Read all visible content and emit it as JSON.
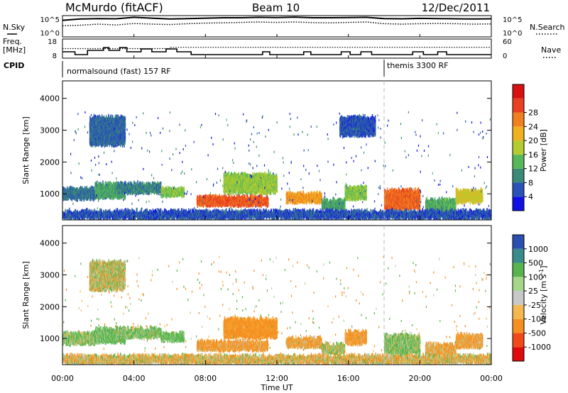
{
  "header": {
    "station": "McMurdo (fitACF)",
    "beam": "Beam 10",
    "date": "12/Dec/2011"
  },
  "top_panels": {
    "nsky_label": "N.Sky",
    "nsearch_label": "N.Search",
    "nsky_ticks": [
      "10^5",
      "10^0"
    ],
    "nsearch_ticks": [
      "10^5",
      "10^0"
    ],
    "freq_label_1": "Freq.",
    "freq_label_2": "[MHz]",
    "freq_ticks": [
      "18",
      "8"
    ],
    "nave_label": "Nave",
    "nave_ticks": [
      "60",
      "0"
    ],
    "cpid_label": "CPID",
    "cpid_segments": [
      "normalsound (fast) 157 RF",
      "themis 3300 RF"
    ]
  },
  "chart_data": [
    {
      "type": "line",
      "title": "",
      "series": [
        {
          "name": "N.Sky",
          "style": "solid",
          "x": [
            0,
            1,
            2,
            3,
            4,
            5,
            6,
            7,
            8,
            9,
            10,
            11,
            12,
            13,
            14,
            15,
            16,
            17,
            18,
            19,
            20,
            21,
            22,
            23,
            24
          ],
          "y": [
            0.78,
            0.84,
            0.86,
            0.85,
            0.92,
            0.88,
            0.84,
            0.86,
            0.88,
            0.9,
            0.9,
            0.92,
            0.91,
            0.93,
            0.9,
            0.9,
            0.91,
            0.92,
            0.86,
            0.85,
            0.87,
            0.86,
            0.85,
            0.84,
            0.85
          ]
        },
        {
          "name": "N.Search",
          "style": "dotted",
          "x": [
            0,
            1,
            2,
            3,
            4,
            5,
            6,
            7,
            8,
            9,
            10,
            11,
            12,
            13,
            14,
            15,
            16,
            17,
            18,
            19,
            20,
            21,
            22,
            23,
            24
          ],
          "y": [
            0.52,
            0.55,
            0.6,
            0.56,
            0.63,
            0.6,
            0.58,
            0.62,
            0.65,
            0.66,
            0.68,
            0.7,
            0.68,
            0.7,
            0.67,
            0.66,
            0.68,
            0.7,
            0.62,
            0.6,
            0.62,
            0.63,
            0.62,
            0.6,
            0.61
          ]
        }
      ]
    },
    {
      "type": "line",
      "series": [
        {
          "name": "Freq.",
          "style": "solid",
          "x": [
            0,
            0.7,
            0.7,
            1.4,
            1.4,
            2.3,
            2.3,
            2.6,
            2.6,
            3.2,
            3.2,
            3.6,
            3.6,
            4.4,
            4.4,
            5.0,
            5.0,
            5.8,
            5.8,
            6.4,
            6.4,
            7.2,
            7.2,
            11.2,
            11.2,
            11.6,
            11.6,
            13.5,
            13.5,
            13.9,
            13.9,
            15.6,
            15.6,
            16.1,
            16.1,
            16.7,
            16.7,
            17.3,
            17.3,
            18.0,
            18.0,
            19.6,
            19.6,
            20.2,
            20.2,
            21.0,
            21.0,
            21.5,
            21.5,
            24
          ],
          "y": [
            11,
            11,
            9,
            9,
            12,
            12,
            14,
            14,
            12,
            12,
            14,
            14,
            11,
            11,
            13,
            13,
            11,
            11,
            13,
            13,
            11,
            11,
            9,
            9,
            11,
            11,
            9,
            9,
            11,
            11,
            9,
            9,
            11,
            11,
            9,
            9,
            11,
            11,
            9,
            9,
            9,
            9,
            11,
            11,
            9,
            9,
            11,
            11,
            9,
            9
          ]
        },
        {
          "name": "Nave",
          "style": "dotted",
          "x": [
            0,
            6,
            6,
            24
          ],
          "y": [
            30,
            30,
            34,
            34
          ]
        }
      ]
    },
    {
      "type": "heatmap",
      "title": "",
      "xlabel": "",
      "ylabel": "Slant Range [km]",
      "x_ticks": [
        "00:00",
        "04:00",
        "08:00",
        "12:00",
        "16:00",
        "20:00",
        "00:00"
      ],
      "y_ticks": [
        "1000",
        "2000",
        "3000",
        "4000"
      ],
      "xlim": [
        0,
        24
      ],
      "ylim": [
        180,
        4550
      ],
      "colorbar": {
        "label": "Power [dB]",
        "ticks": [
          "4",
          "8",
          "12",
          "16",
          "20",
          "24",
          "28"
        ],
        "range": [
          0,
          30
        ]
      },
      "regions": [
        {
          "x": [
            0.0,
            1.8
          ],
          "y": [
            800,
            1250
          ],
          "value": 7
        },
        {
          "x": [
            1.8,
            3.5
          ],
          "y": [
            850,
            1400
          ],
          "value": 10
        },
        {
          "x": [
            3.0,
            5.5
          ],
          "y": [
            1000,
            1400
          ],
          "value": 8
        },
        {
          "x": [
            5.5,
            6.8
          ],
          "y": [
            900,
            1250
          ],
          "value": 13
        },
        {
          "x": [
            7.5,
            11.5
          ],
          "y": [
            600,
            1000
          ],
          "value": 24
        },
        {
          "x": [
            9.0,
            12.0
          ],
          "y": [
            1000,
            1700
          ],
          "value": 14
        },
        {
          "x": [
            12.5,
            14.5
          ],
          "y": [
            700,
            1100
          ],
          "value": 20
        },
        {
          "x": [
            14.5,
            15.8
          ],
          "y": [
            500,
            900
          ],
          "value": 10
        },
        {
          "x": [
            15.8,
            17.0
          ],
          "y": [
            800,
            1300
          ],
          "value": 13
        },
        {
          "x": [
            18.0,
            20.0
          ],
          "y": [
            500,
            1200
          ],
          "value": 23
        },
        {
          "x": [
            19.5,
            20.3
          ],
          "y": [
            250,
            450
          ],
          "value": 27
        },
        {
          "x": [
            20.3,
            22.0
          ],
          "y": [
            400,
            900
          ],
          "value": 11
        },
        {
          "x": [
            22.0,
            23.5
          ],
          "y": [
            700,
            1200
          ],
          "value": 16
        },
        {
          "x": [
            0.0,
            24.0
          ],
          "y": [
            200,
            550
          ],
          "value": 5
        },
        {
          "x": [
            1.5,
            3.5
          ],
          "y": [
            2500,
            3500
          ],
          "value": 6
        },
        {
          "x": [
            15.5,
            17.5
          ],
          "y": [
            2800,
            3500
          ],
          "value": 5
        }
      ]
    },
    {
      "type": "heatmap",
      "title": "",
      "xlabel": "Time UT",
      "ylabel": "Slant Range [km]",
      "x_ticks": [
        "00:00",
        "04:00",
        "08:00",
        "12:00",
        "16:00",
        "20:00",
        "00:00"
      ],
      "y_ticks": [
        "1000",
        "2000",
        "3000",
        "4000"
      ],
      "xlim": [
        0,
        24
      ],
      "ylim": [
        180,
        4550
      ],
      "colorbar": {
        "label": "Velocity [m s^-1]",
        "label_main": "Velocity",
        "label_unit": "[m s",
        "label_sup": "-1",
        "label_close": "]",
        "ticks": [
          "1000",
          "500",
          "100",
          "25",
          "-25",
          "-100",
          "-500",
          "-1000"
        ],
        "range": [
          -1200,
          1200
        ]
      },
      "regions": [
        {
          "x": [
            0.0,
            1.8
          ],
          "y": [
            800,
            1250
          ],
          "value": 120
        },
        {
          "x": [
            1.8,
            3.5
          ],
          "y": [
            850,
            1400
          ],
          "value": 200
        },
        {
          "x": [
            3.0,
            5.5
          ],
          "y": [
            1000,
            1400
          ],
          "value": 150
        },
        {
          "x": [
            5.5,
            6.8
          ],
          "y": [
            900,
            1250
          ],
          "value": 220
        },
        {
          "x": [
            7.5,
            11.5
          ],
          "y": [
            600,
            1000
          ],
          "value": -180
        },
        {
          "x": [
            9.0,
            12.0
          ],
          "y": [
            1000,
            1700
          ],
          "value": -250
        },
        {
          "x": [
            12.5,
            14.5
          ],
          "y": [
            700,
            1100
          ],
          "value": -150
        },
        {
          "x": [
            14.5,
            15.8
          ],
          "y": [
            500,
            900
          ],
          "value": 40
        },
        {
          "x": [
            15.8,
            17.0
          ],
          "y": [
            800,
            1300
          ],
          "value": -200
        },
        {
          "x": [
            18.0,
            20.0
          ],
          "y": [
            500,
            1200
          ],
          "value": 130
        },
        {
          "x": [
            20.3,
            22.0
          ],
          "y": [
            400,
            900
          ],
          "value": -120
        },
        {
          "x": [
            22.0,
            23.5
          ],
          "y": [
            700,
            1200
          ],
          "value": -160
        },
        {
          "x": [
            0.0,
            24.0
          ],
          "y": [
            200,
            550
          ],
          "value": -60
        },
        {
          "x": [
            1.5,
            3.5
          ],
          "y": [
            2500,
            3500
          ],
          "value": 10
        }
      ]
    }
  ]
}
